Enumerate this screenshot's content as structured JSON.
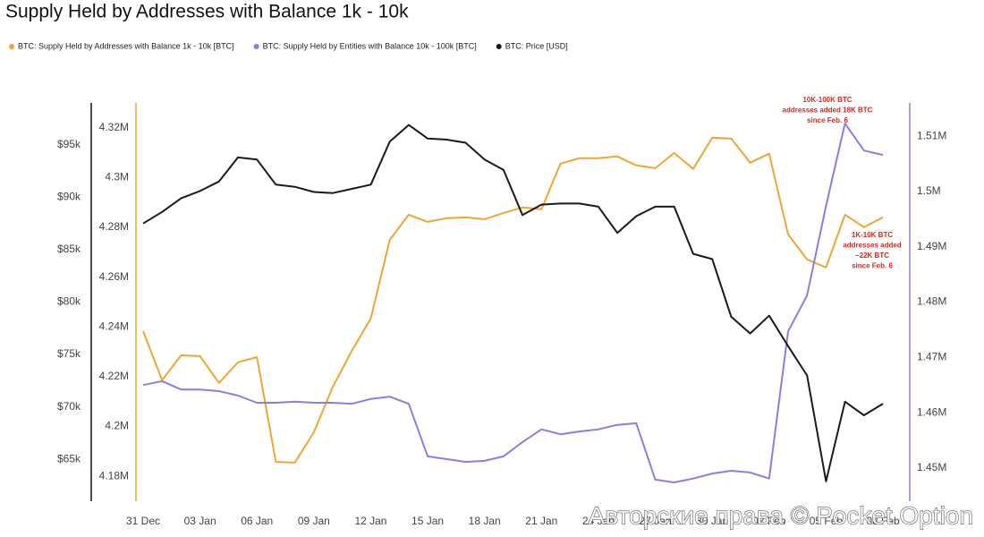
{
  "chart_data": {
    "type": "line",
    "title": "Supply Held by Addresses with Balance 1k - 10k",
    "categories": [
      "31 Dec",
      null,
      null,
      "03 Jan",
      null,
      null,
      "06 Jan",
      null,
      null,
      "09 Jan",
      null,
      null,
      "12 Jan",
      null,
      null,
      "15 Jan",
      null,
      null,
      "18 Jan",
      null,
      null,
      "21 Jan",
      null,
      null,
      "24 Jan",
      null,
      null,
      "27 Jan",
      null,
      null,
      "30 Jan",
      null,
      null,
      "02 Feb",
      null,
      null,
      "05 Feb",
      null,
      null,
      "08 Feb"
    ],
    "series": [
      {
        "name": "BTC: Supply Held by Addresses with Balance 1k - 10k [BTC]",
        "color": "#f0a536",
        "axis": "y3",
        "values": [
          4238300,
          4218600,
          4228600,
          4228300,
          4217500,
          4225800,
          4227900,
          4185800,
          4185500,
          4197700,
          4216000,
          4230400,
          4243400,
          4275000,
          4285100,
          4282200,
          4283700,
          4284000,
          4283300,
          4285800,
          4288000,
          4287300,
          4305600,
          4307800,
          4307800,
          4308500,
          4304900,
          4303800,
          4309900,
          4303500,
          4316000,
          4315700,
          4306000,
          4309600,
          4277200,
          4267100,
          4263900,
          4285100,
          4280100,
          4284000
        ]
      },
      {
        "name": "BTC: Supply Held by Entities with Balance 10k - 100k [BTC]",
        "color": "#8a7fe0",
        "axis": "y2",
        "values": [
          1465000,
          1465700,
          1464200,
          1464200,
          1463900,
          1463100,
          1461800,
          1461800,
          1462000,
          1461800,
          1461800,
          1461600,
          1462500,
          1462900,
          1461600,
          1452100,
          1451600,
          1451100,
          1451300,
          1452100,
          1454700,
          1457000,
          1456100,
          1456600,
          1457000,
          1457800,
          1458100,
          1447900,
          1447400,
          1448100,
          1449000,
          1449500,
          1449200,
          1448100,
          1474700,
          1481200,
          1497400,
          1512300,
          1507400,
          1506600
        ]
      },
      {
        "name": "BTC: Price [USD]",
        "color": "#1a1a1a",
        "axis": "y",
        "values": [
          87500,
          88600,
          89900,
          90600,
          91500,
          93800,
          93600,
          91200,
          91000,
          90500,
          90400,
          90800,
          91200,
          95300,
          96900,
          95600,
          95500,
          95200,
          93600,
          92600,
          88300,
          89300,
          89400,
          89400,
          89100,
          86600,
          88200,
          89100,
          89100,
          84600,
          84100,
          78600,
          77000,
          78700,
          75800,
          73000,
          62900,
          70500,
          69200,
          70300
        ]
      }
    ],
    "ylim": [
      61000,
      99000
    ],
    "yticks": [
      {
        "value": 65000,
        "label": "$65k"
      },
      {
        "value": 70000,
        "label": "$70k"
      },
      {
        "value": 75000,
        "label": "$75k"
      },
      {
        "value": 80000,
        "label": "$80k"
      },
      {
        "value": 85000,
        "label": "$85k"
      },
      {
        "value": 90000,
        "label": "$90k"
      },
      {
        "value": 95000,
        "label": "$95k"
      }
    ],
    "y3lim": [
      4170000,
      4330000
    ],
    "y3ticks": [
      {
        "value": 4180000,
        "label": "4.18M"
      },
      {
        "value": 4200000,
        "label": "4.2M"
      },
      {
        "value": 4220000,
        "label": "4.22M"
      },
      {
        "value": 4240000,
        "label": "4.24M"
      },
      {
        "value": 4260000,
        "label": "4.26M"
      },
      {
        "value": 4280000,
        "label": "4.28M"
      },
      {
        "value": 4300000,
        "label": "4.3M"
      },
      {
        "value": 4320000,
        "label": "4.32M"
      }
    ],
    "y2lim": [
      1444000,
      1516000
    ],
    "y2ticks": [
      {
        "value": 1450000,
        "label": "1.45M"
      },
      {
        "value": 1460000,
        "label": "1.46M"
      },
      {
        "value": 1470000,
        "label": "1.47M"
      },
      {
        "value": 1480000,
        "label": "1.48M"
      },
      {
        "value": 1490000,
        "label": "1.49M"
      },
      {
        "value": 1500000,
        "label": "1.5M"
      },
      {
        "value": 1510000,
        "label": "1.51M"
      }
    ],
    "annotations": [
      [
        "10K-100K BTC",
        "addresses added 18K BTC",
        "since Feb. 6"
      ],
      [
        "1K-10K BTC",
        "addresses added",
        "~22K BTC",
        "since Feb. 6"
      ]
    ],
    "watermark": "Авторские права © Pocket Option"
  }
}
